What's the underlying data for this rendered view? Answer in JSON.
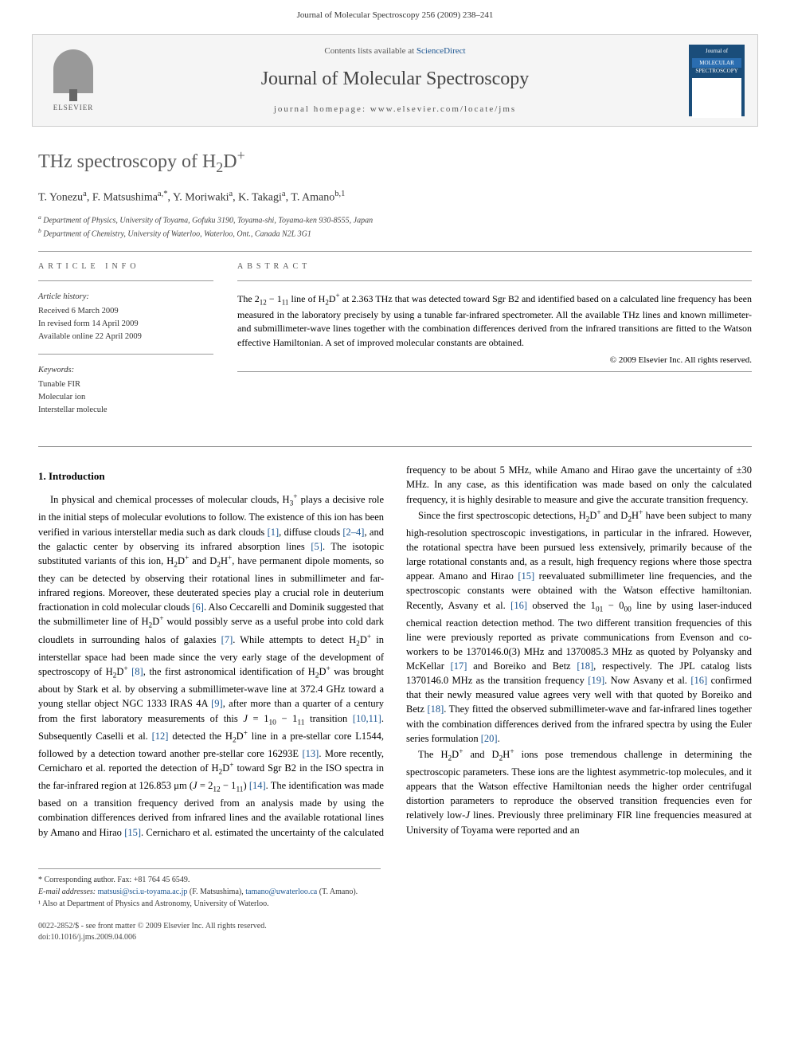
{
  "running_header": "Journal of Molecular Spectroscopy 256 (2009) 238–241",
  "banner": {
    "elsevier_label": "ELSEVIER",
    "contents_prefix": "Contents lists available at ",
    "contents_link": "ScienceDirect",
    "journal_name": "Journal of Molecular Spectroscopy",
    "homepage_prefix": "journal homepage: ",
    "homepage_url": "www.elsevier.com/locate/jms",
    "cover_title_line1": "Journal of",
    "cover_title_line2": "MOLECULAR",
    "cover_title_line3": "SPECTROSCOPY"
  },
  "title_html": "THz spectroscopy of H<sub>2</sub>D<sup>+</sup>",
  "authors_html": "T. Yonezu<sup>a</sup>, F. Matsushima<sup>a,*</sup>, Y. Moriwaki<sup>a</sup>, K. Takagi<sup>a</sup>, T. Amano<sup>b,1</sup>",
  "affiliations": [
    "<sup>a</sup> Department of Physics, University of Toyama, Gofuku 3190, Toyama-shi, Toyama-ken 930-8555, Japan",
    "<sup>b</sup> Department of Chemistry, University of Waterloo, Waterloo, Ont., Canada N2L 3G1"
  ],
  "info": {
    "heading": "ARTICLE INFO",
    "history_heading": "Article history:",
    "history": [
      "Received 6 March 2009",
      "In revised form 14 April 2009",
      "Available online 22 April 2009"
    ],
    "keywords_heading": "Keywords:",
    "keywords": [
      "Tunable FIR",
      "Molecular ion",
      "Interstellar molecule"
    ]
  },
  "abstract": {
    "heading": "ABSTRACT",
    "text_html": "The 2<sub>12</sub> − 1<sub>11</sub> line of H<sub>2</sub>D<sup>+</sup> at 2.363 THz that was detected toward Sgr B2 and identified based on a calculated line frequency has been measured in the laboratory precisely by using a tunable far-infrared spectrometer. All the available THz lines and known millimeter- and submillimeter-wave lines together with the combination differences derived from the infrared transitions are fitted to the Watson effective Hamiltonian. A set of improved molecular constants are obtained.",
    "copyright": "© 2009 Elsevier Inc. All rights reserved."
  },
  "section1": {
    "heading": "1. Introduction",
    "p1_html": "In physical and chemical processes of molecular clouds, H<sub>3</sub><sup>+</sup> plays a decisive role in the initial steps of molecular evolutions to follow. The existence of this ion has been verified in various interstellar media such as dark clouds <span class=\"ref\">[1]</span>, diffuse clouds <span class=\"ref\">[2–4]</span>, and the galactic center by observing its infrared absorption lines <span class=\"ref\">[5]</span>. The isotopic substituted variants of this ion, H<sub>2</sub>D<sup>+</sup> and D<sub>2</sub>H<sup>+</sup>, have permanent dipole moments, so they can be detected by observing their rotational lines in submillimeter and far-infrared regions. Moreover, these deuterated species play a crucial role in deuterium fractionation in cold molecular clouds <span class=\"ref\">[6]</span>. Also Ceccarelli and Dominik suggested that the submillimeter line of H<sub>2</sub>D<sup>+</sup> would possibly serve as a useful probe into cold dark cloudlets in surrounding halos of galaxies <span class=\"ref\">[7]</span>. While attempts to detect H<sub>2</sub>D<sup>+</sup> in interstellar space had been made since the very early stage of the development of spectroscopy of H<sub>2</sub>D<sup>+</sup> <span class=\"ref\">[8]</span>, the first astronomical identification of H<sub>2</sub>D<sup>+</sup> was brought about by Stark et al. by observing a submillimeter-wave line at 372.4 GHz toward a young stellar object NGC 1333 IRAS 4A <span class=\"ref\">[9]</span>, after more than a quarter of a century from the first laboratory measurements of this <i>J</i> = 1<sub>10</sub> − 1<sub>11</sub> transition <span class=\"ref\">[10,11]</span>. Subsequently Caselli et al. <span class=\"ref\">[12]</span> detected the H<sub>2</sub>D<sup>+</sup> line in a pre-stellar core L1544, followed by a detection toward another pre-stellar core 16293E <span class=\"ref\">[13]</span>. More recently, Cernicharo et al. reported the detection of H<sub>2</sub>D<sup>+</sup> toward Sgr B2 in the ISO spectra in the far-infrared region at 126.853 μm (<i>J</i> = 2<sub>12</sub> − 1<sub>11</sub>) <span class=\"ref\">[14]</span>. The identification was made based on a transition frequency derived from an analysis made by using the combination differences derived from infrared lines and the available rotational lines by Amano and Hirao <span class=\"ref\">[15]</span>. Cernicharo et al. estimated the uncertainty of the calculated frequency to be about 5 MHz, while Amano and Hirao gave the uncertainty of ±30 MHz. In any case, as this identification was made based on only the calculated frequency, it is highly desirable to measure and give the accurate transition frequency.",
    "p2_html": "Since the first spectroscopic detections, H<sub>2</sub>D<sup>+</sup> and D<sub>2</sub>H<sup>+</sup> have been subject to many high-resolution spectroscopic investigations, in particular in the infrared. However, the rotational spectra have been pursued less extensively, primarily because of the large rotational constants and, as a result, high frequency regions where those spectra appear. Amano and Hirao <span class=\"ref\">[15]</span> reevaluated submillimeter line frequencies, and the spectroscopic constants were obtained with the Watson effective hamiltonian. Recently, Asvany et al. <span class=\"ref\">[16]</span> observed the 1<sub>01</sub> − 0<sub>00</sub> line by using laser-induced chemical reaction detection method. The two different transition frequencies of this line were previously reported as private communications from Evenson and co-workers to be 1370146.0(3) MHz and 1370085.3 MHz as quoted by Polyansky and McKellar <span class=\"ref\">[17]</span> and Boreiko and Betz <span class=\"ref\">[18]</span>, respectively. The JPL catalog lists 1370146.0 MHz as the transition frequency <span class=\"ref\">[19]</span>. Now Asvany et al. <span class=\"ref\">[16]</span> confirmed that their newly measured value agrees very well with that quoted by Boreiko and Betz <span class=\"ref\">[18]</span>. They fitted the observed submillimeter-wave and far-infrared lines together with the combination differences derived from the infrared spectra by using the Euler series formulation <span class=\"ref\">[20]</span>.",
    "p3_html": "The H<sub>2</sub>D<sup>+</sup> and D<sub>2</sub>H<sup>+</sup> ions pose tremendous challenge in determining the spectroscopic parameters. These ions are the lightest asymmetric-top molecules, and it appears that the Watson effective Hamiltonian needs the higher order centrifugal distortion parameters to reproduce the observed transition frequencies even for relatively low-<i>J</i> lines. Previously three preliminary FIR line frequencies measured at University of Toyama were reported and an"
  },
  "footnotes": {
    "corr_label": "* Corresponding author. Fax: +81 764 45 6549.",
    "email_label": "E-mail addresses:",
    "email1": "matsusi@sci.u-toyama.ac.jp",
    "email1_who": "(F. Matsushima),",
    "email2": "tamano@uwaterloo.ca",
    "email2_who": "(T. Amano).",
    "note1": "¹ Also at Department of Physics and Astronomy, University of Waterloo."
  },
  "footer": {
    "left_line1": "0022-2852/$ - see front matter © 2009 Elsevier Inc. All rights reserved.",
    "left_line2": "doi:10.1016/j.jms.2009.04.006"
  }
}
